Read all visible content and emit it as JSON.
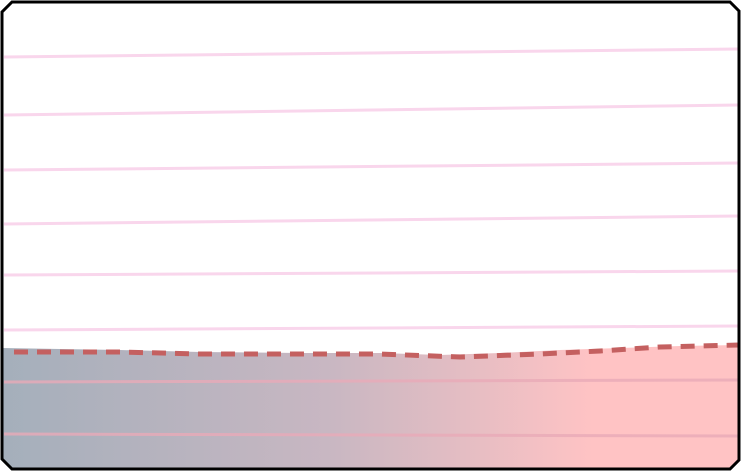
{
  "scene": {
    "water_level": 0.265,
    "colors": {
      "background": "#ffffff",
      "border": "#000000",
      "notebook_line": "#f9d6ec",
      "water_left": "#a4afbb",
      "water_mid": "#c9b7c2",
      "water_right": "#ffc3c4",
      "water_line": "#e8aab8",
      "surface_line": "#c46060"
    }
  }
}
